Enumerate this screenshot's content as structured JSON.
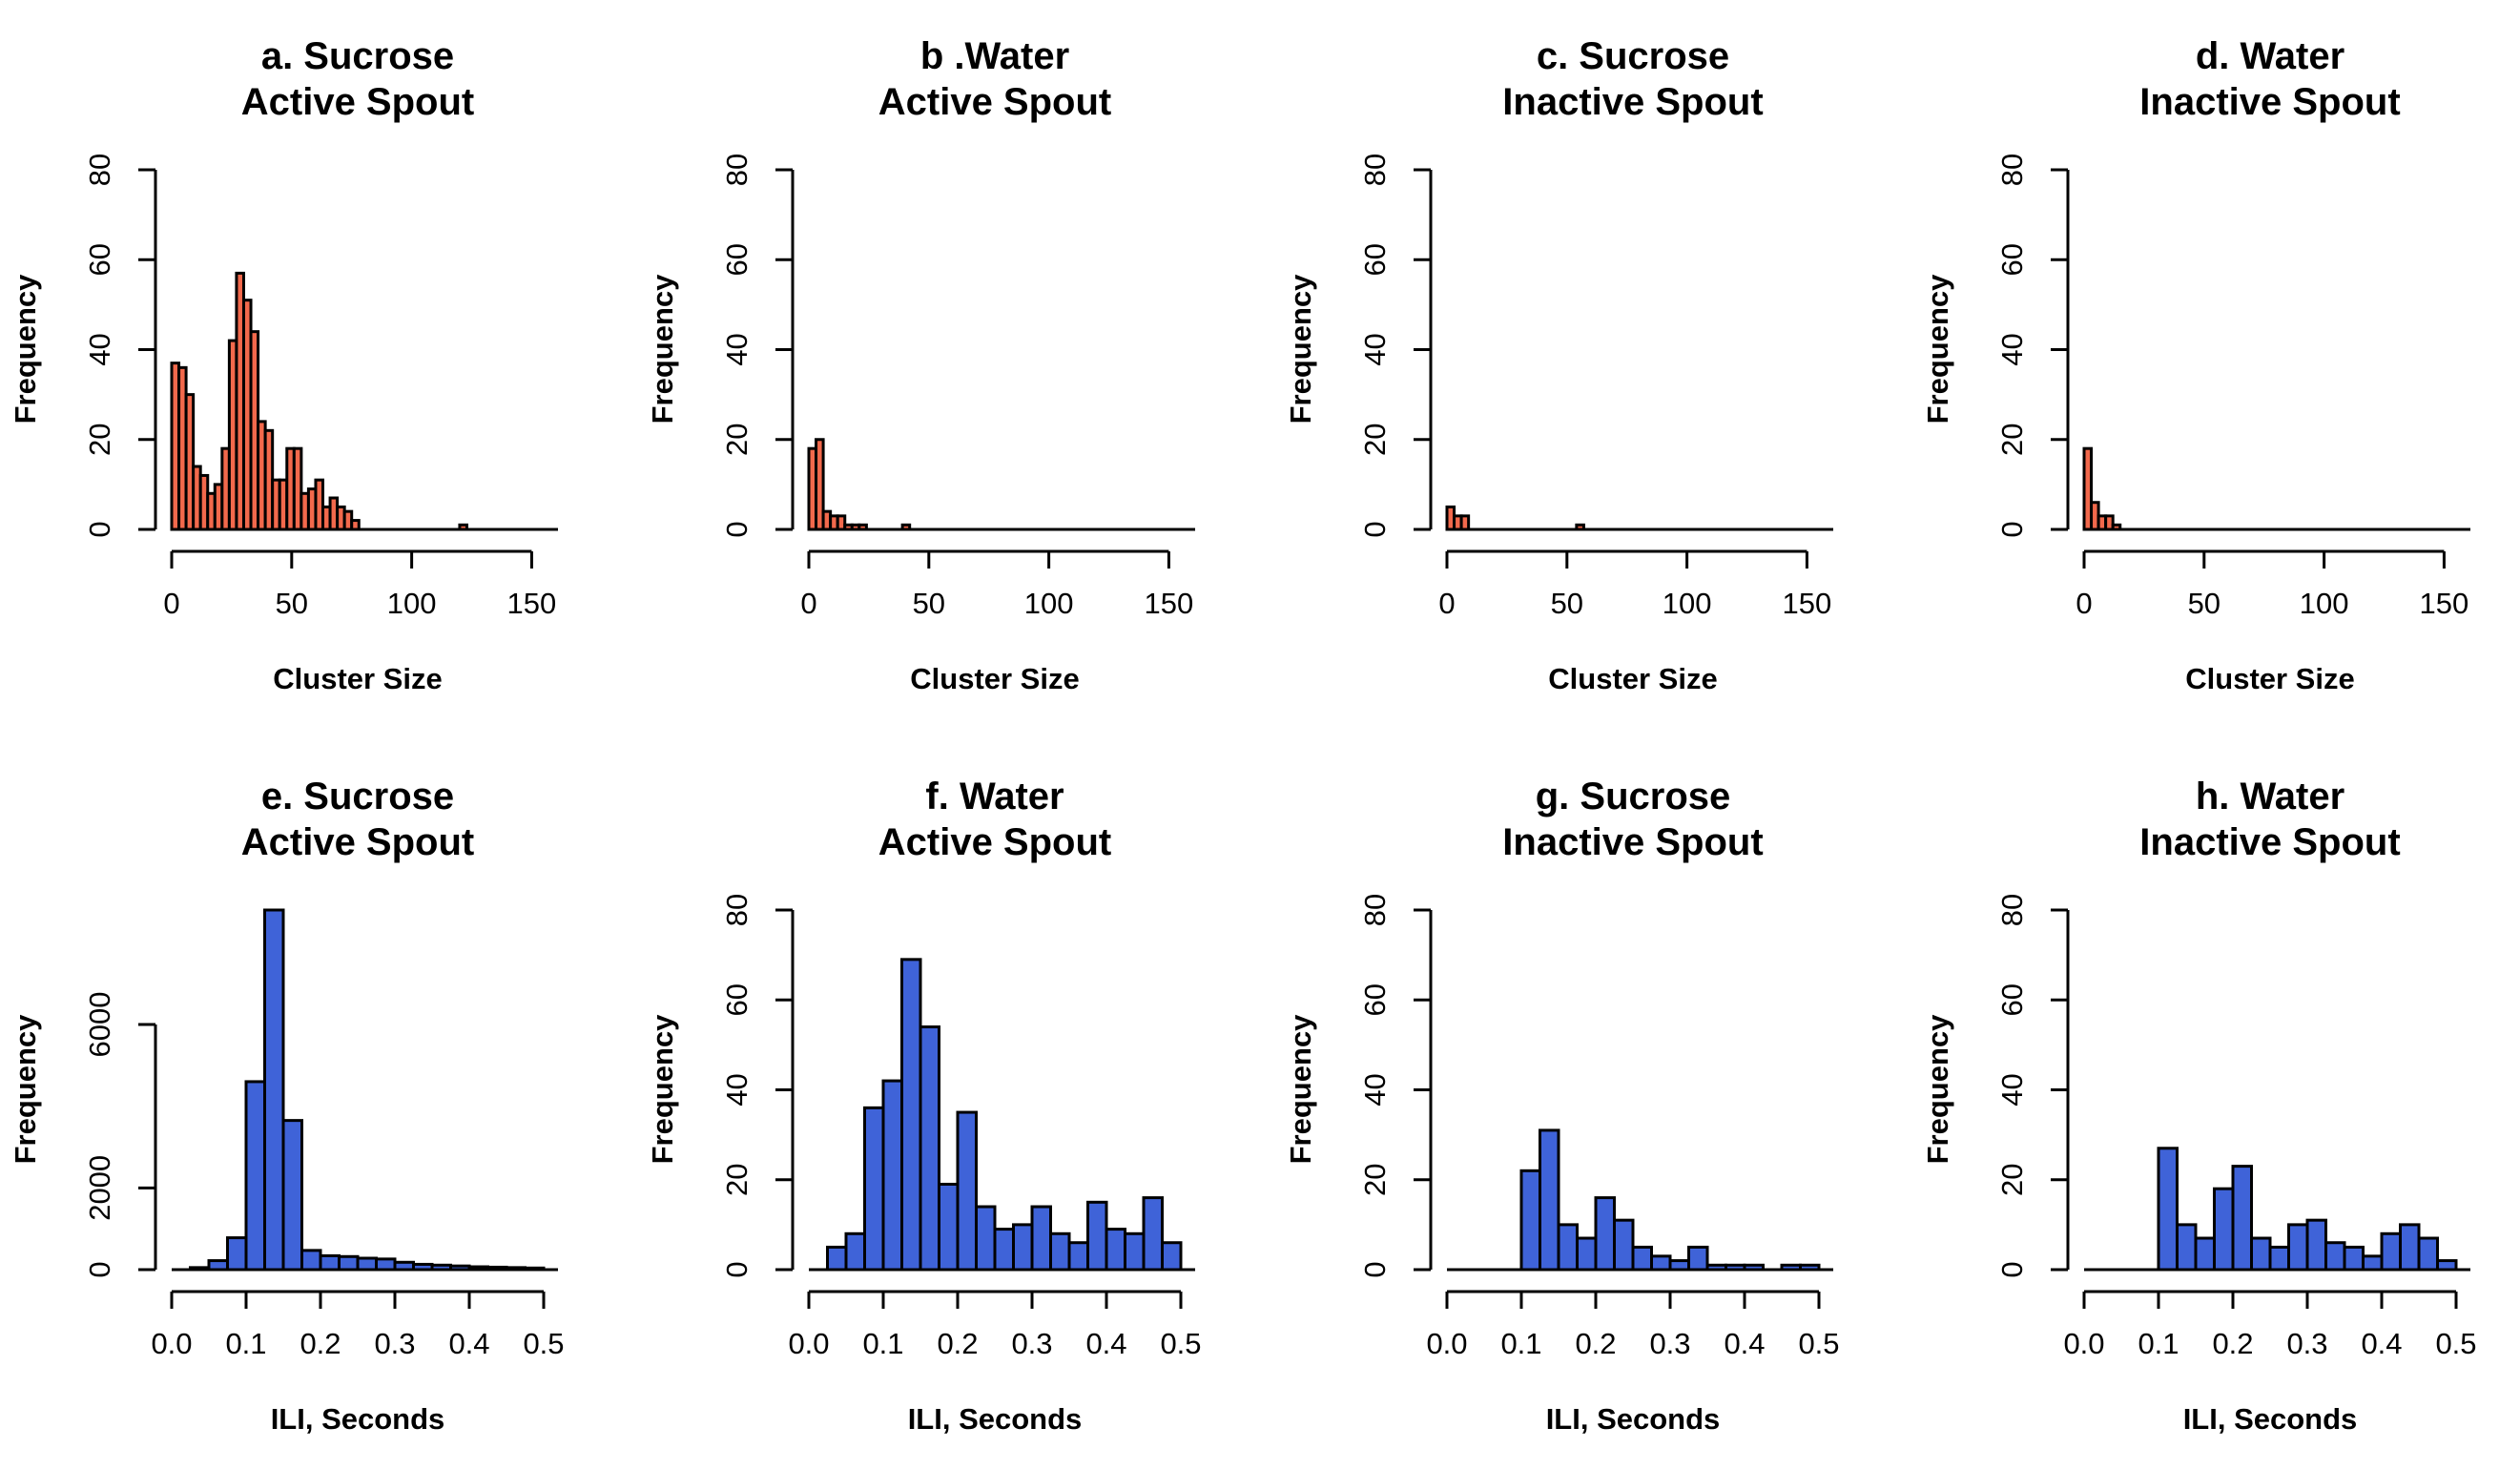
{
  "chart_data": [
    {
      "type": "bar",
      "title": "a. Sucrose",
      "subtitle": "Active Spout",
      "xlabel": "Cluster Size",
      "ylabel": "Frequency",
      "color": "#f2694c",
      "bin_start": 0,
      "bin_width": 3,
      "xlim": [
        0,
        155
      ],
      "xticks": [
        0,
        50,
        100,
        150
      ],
      "ylim": [
        0,
        80
      ],
      "yticks": [
        0,
        20,
        40,
        60,
        80
      ],
      "values": [
        37,
        36,
        30,
        14,
        12,
        8,
        10,
        18,
        42,
        57,
        51,
        44,
        24,
        22,
        11,
        11,
        18,
        18,
        8,
        9,
        11,
        5,
        7,
        5,
        4,
        2,
        0,
        0,
        0,
        0,
        0,
        0,
        0,
        0,
        0,
        0,
        0,
        0,
        0,
        0,
        1,
        0
      ]
    },
    {
      "type": "bar",
      "title": "b .Water",
      "subtitle": "Active Spout",
      "xlabel": "Cluster Size",
      "ylabel": "Frequency",
      "color": "#f2694c",
      "bin_start": 0,
      "bin_width": 3,
      "xlim": [
        0,
        155
      ],
      "xticks": [
        0,
        50,
        100,
        150
      ],
      "ylim": [
        0,
        80
      ],
      "yticks": [
        0,
        20,
        40,
        60,
        80
      ],
      "values": [
        18,
        20,
        4,
        3,
        3,
        1,
        1,
        1,
        0,
        0,
        0,
        0,
        0,
        1
      ]
    },
    {
      "type": "bar",
      "title": "c. Sucrose",
      "subtitle": "Inactive Spout",
      "xlabel": "Cluster Size",
      "ylabel": "Frequency",
      "color": "#f2694c",
      "bin_start": 0,
      "bin_width": 3,
      "xlim": [
        0,
        155
      ],
      "xticks": [
        0,
        50,
        100,
        150
      ],
      "ylim": [
        0,
        80
      ],
      "yticks": [
        0,
        20,
        40,
        60,
        80
      ],
      "values": [
        5,
        3,
        3,
        0,
        0,
        0,
        0,
        0,
        0,
        0,
        0,
        0,
        0,
        0,
        0,
        0,
        0,
        0,
        1
      ]
    },
    {
      "type": "bar",
      "title": "d. Water",
      "subtitle": "Inactive Spout",
      "xlabel": "Cluster Size",
      "ylabel": "Frequency",
      "color": "#f2694c",
      "bin_start": 0,
      "bin_width": 3,
      "xlim": [
        0,
        155
      ],
      "xticks": [
        0,
        50,
        100,
        150
      ],
      "ylim": [
        0,
        80
      ],
      "yticks": [
        0,
        20,
        40,
        60,
        80
      ],
      "values": [
        18,
        6,
        3,
        3,
        1
      ]
    },
    {
      "type": "bar",
      "title": "e. Sucrose",
      "subtitle": "Active Spout",
      "xlabel": "ILI, Seconds",
      "ylabel": "Frequency",
      "color": "#3f63d8",
      "bin_start": 0,
      "bin_width": 0.025,
      "xlim": [
        0,
        0.5
      ],
      "xticks": [
        "0.0",
        "0.1",
        "0.2",
        "0.3",
        "0.4",
        "0.5"
      ],
      "ylim": [
        0,
        8800
      ],
      "yticks": [
        0,
        2000,
        6000
      ],
      "values": [
        0,
        50,
        220,
        780,
        4600,
        8800,
        3650,
        470,
        340,
        320,
        280,
        260,
        180,
        130,
        110,
        90,
        70,
        60,
        50,
        40
      ]
    },
    {
      "type": "bar",
      "title": "f. Water",
      "subtitle": "Active Spout",
      "xlabel": "ILI, Seconds",
      "ylabel": "Frequency",
      "color": "#3f63d8",
      "bin_start": 0,
      "bin_width": 0.025,
      "xlim": [
        0,
        0.5
      ],
      "xticks": [
        "0.0",
        "0.1",
        "0.2",
        "0.3",
        "0.4",
        "0.5"
      ],
      "ylim": [
        0,
        80
      ],
      "yticks": [
        0,
        20,
        40,
        60,
        80
      ],
      "values": [
        0,
        5,
        8,
        36,
        42,
        69,
        54,
        19,
        35,
        14,
        9,
        10,
        14,
        8,
        6,
        15,
        9,
        8,
        16,
        6
      ]
    },
    {
      "type": "bar",
      "title": "g. Sucrose",
      "subtitle": "Inactive Spout",
      "xlabel": "ILI, Seconds",
      "ylabel": "Frequency",
      "color": "#3f63d8",
      "bin_start": 0,
      "bin_width": 0.025,
      "xlim": [
        0,
        0.5
      ],
      "xticks": [
        "0.0",
        "0.1",
        "0.2",
        "0.3",
        "0.4",
        "0.5"
      ],
      "ylim": [
        0,
        80
      ],
      "yticks": [
        0,
        20,
        40,
        60,
        80
      ],
      "values": [
        0,
        0,
        0,
        0,
        22,
        31,
        10,
        7,
        16,
        11,
        5,
        3,
        2,
        5,
        1,
        1,
        1,
        0,
        1,
        1
      ]
    },
    {
      "type": "bar",
      "title": "h. Water",
      "subtitle": "Inactive Spout",
      "xlabel": "ILI, Seconds",
      "ylabel": "Frequency",
      "color": "#3f63d8",
      "bin_start": 0,
      "bin_width": 0.025,
      "xlim": [
        0,
        0.5
      ],
      "xticks": [
        "0.0",
        "0.1",
        "0.2",
        "0.3",
        "0.4",
        "0.5"
      ],
      "ylim": [
        0,
        80
      ],
      "yticks": [
        0,
        20,
        40,
        60,
        80
      ],
      "values": [
        0,
        0,
        0,
        0,
        27,
        10,
        7,
        18,
        23,
        7,
        5,
        10,
        11,
        6,
        5,
        3,
        8,
        10,
        7,
        2
      ]
    }
  ]
}
